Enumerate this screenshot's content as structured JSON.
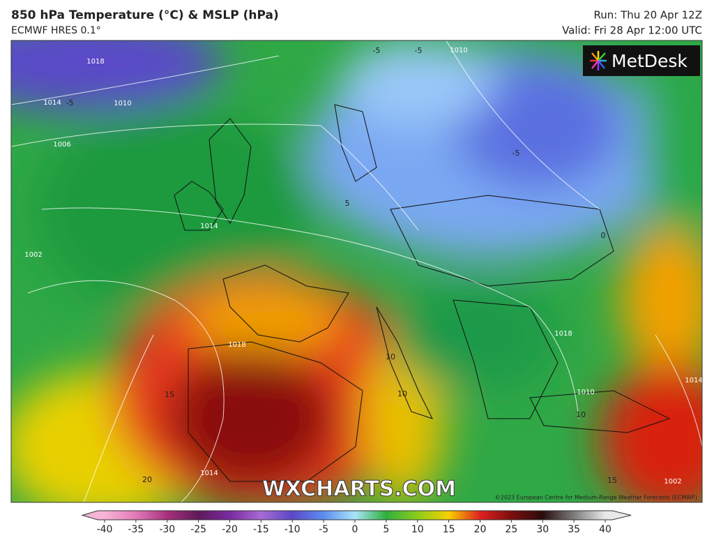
{
  "header": {
    "title": "850 hPa Temperature (°C) & MSLP (hPa)",
    "subtitle": "ECMWF HRES 0.1°",
    "run": "Run: Thu 20 Apr 12Z",
    "valid": "Valid: Fri 28 Apr 12:00 UTC"
  },
  "logo": "MetDesk",
  "watermark": "WXCHARTS.COM",
  "copyright": "©2023 European Centre for Medium-Range Weather Forecasts (ECMWF)",
  "map": {
    "isobar_labels": [
      1018,
      1014,
      1010,
      1006,
      1014,
      1002,
      1018,
      1018,
      1010,
      1010,
      1014,
      1002,
      1014
    ],
    "temperature_labels": [
      -5,
      -5,
      -5,
      5,
      -5,
      0,
      10,
      10,
      10,
      15,
      20,
      15
    ]
  },
  "colorbar": {
    "ticks": [
      -40,
      -35,
      -30,
      -25,
      -20,
      -15,
      -10,
      -5,
      0,
      5,
      10,
      15,
      20,
      25,
      30,
      35,
      40
    ],
    "colors": [
      "#f7b4d6",
      "#e27ab8",
      "#a8307c",
      "#5e1a5a",
      "#7a2aa0",
      "#a86ad4",
      "#5a48c8",
      "#5b8ef0",
      "#a8e4f8",
      "#2eb03c",
      "#8ccc1c",
      "#f8d000",
      "#e02020",
      "#7c0e0e",
      "#2a0c0c",
      "#7c7c7c",
      "#e8e8e8"
    ]
  }
}
